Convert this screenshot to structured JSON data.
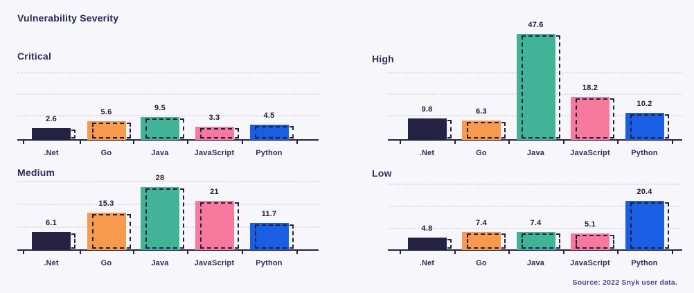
{
  "title": "Vulnerability Severity",
  "source_note": "Source: 2022 Snyk user data.",
  "colors": {
    "background": "#F7F7FB",
    "title_text": "#262350",
    "section_text": "#2E2B5F",
    "value_text": "#1E1B38",
    "source_text": "#4A4890",
    "axis": "#23203F",
    "gridline": "#DCDCE2",
    "dashed_outline": "#23203F",
    "bar_net": "#262243",
    "bar_go": "#F79A4D",
    "bar_java": "#41B497",
    "bar_javascript": "#F8799E",
    "bar_python": "#1A5EE4"
  },
  "chart_data": {
    "type": "bar",
    "categories": [
      ".Net",
      "Go",
      "Java",
      "JavaScript",
      "Python"
    ],
    "series_colors": [
      "#262243",
      "#F79A4D",
      "#41B497",
      "#F8799E",
      "#1A5EE4"
    ],
    "grid": "3 dotted horizontal gridlines per panel, no y-axis labels",
    "legend": "none",
    "ghost_outline": "each solid bar has an unlabeled dashed outline echo offset slightly down-right",
    "panels": [
      {
        "title": "Critical",
        "values": [
          2.6,
          5.6,
          9.5,
          3.3,
          4.5
        ],
        "labels": [
          "2.6",
          "5.6",
          "9.5",
          "3.3",
          "4.5"
        ]
      },
      {
        "title": "High",
        "values": [
          9.8,
          6.3,
          47.6,
          18.2,
          10.2
        ],
        "labels": [
          "9.8",
          "6.3",
          "47.6",
          "18.2",
          "10.2"
        ]
      },
      {
        "title": "Medium",
        "values": [
          6.1,
          15.3,
          28,
          21,
          11.7
        ],
        "labels": [
          "6.1",
          "15.3",
          "28",
          "21",
          "11.7"
        ]
      },
      {
        "title": "Low",
        "values": [
          4.8,
          7.4,
          7.4,
          5.1,
          20.4
        ],
        "labels": [
          "4.8",
          "7.4",
          "7.4",
          "5.1",
          "20.4"
        ]
      }
    ]
  }
}
